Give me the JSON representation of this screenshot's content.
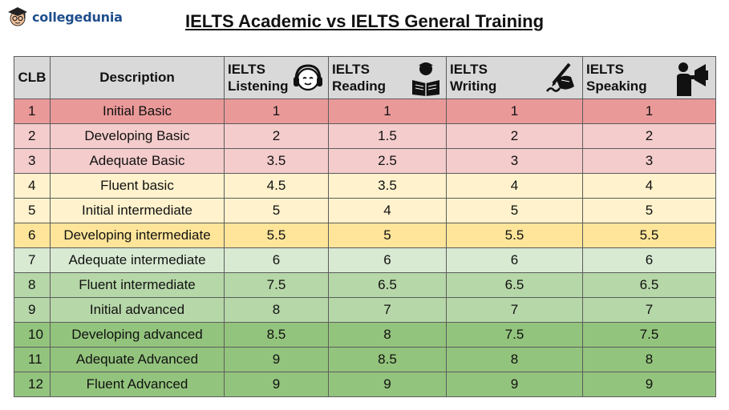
{
  "logo": {
    "text": "collegedunia"
  },
  "title": "IELTS Academic vs IELTS General Training",
  "columns": {
    "clb": "CLB",
    "description": "Description",
    "listening": [
      "IELTS",
      "Listening"
    ],
    "reading": [
      "IELTS",
      "Reading"
    ],
    "writing": [
      "IELTS",
      "Writing"
    ],
    "speaking": [
      "IELTS",
      "Speaking"
    ]
  },
  "icons": {
    "listening": "headphones-icon",
    "reading": "reader-icon",
    "writing": "writing-hand-icon",
    "speaking": "megaphone-speaker-icon"
  },
  "rows": [
    {
      "clb": "1",
      "description": "Initial Basic",
      "listening": "1",
      "reading": "1",
      "writing": "1",
      "speaking": "1",
      "color": "#ea9999"
    },
    {
      "clb": "2",
      "description": "Developing Basic",
      "listening": "2",
      "reading": "1.5",
      "writing": "2",
      "speaking": "2",
      "color": "#f4cccc"
    },
    {
      "clb": "3",
      "description": "Adequate Basic",
      "listening": "3.5",
      "reading": "2.5",
      "writing": "3",
      "speaking": "3",
      "color": "#f4cccc"
    },
    {
      "clb": "4",
      "description": "Fluent basic",
      "listening": "4.5",
      "reading": "3.5",
      "writing": "4",
      "speaking": "4",
      "color": "#fff2cc"
    },
    {
      "clb": "5",
      "description": "Initial intermediate",
      "listening": "5",
      "reading": "4",
      "writing": "5",
      "speaking": "5",
      "color": "#fff2cc"
    },
    {
      "clb": "6",
      "description": "Developing intermediate",
      "listening": "5.5",
      "reading": "5",
      "writing": "5.5",
      "speaking": "5.5",
      "color": "#ffe599"
    },
    {
      "clb": "7",
      "description": "Adequate intermediate",
      "listening": "6",
      "reading": "6",
      "writing": "6",
      "speaking": "6",
      "color": "#d9ead3"
    },
    {
      "clb": "8",
      "description": "Fluent intermediate",
      "listening": "7.5",
      "reading": "6.5",
      "writing": "6.5",
      "speaking": "6.5",
      "color": "#b6d7a8"
    },
    {
      "clb": "9",
      "description": "Initial advanced",
      "listening": "8",
      "reading": "7",
      "writing": "7",
      "speaking": "7",
      "color": "#b6d7a8"
    },
    {
      "clb": "10",
      "description": "Developing advanced",
      "listening": "8.5",
      "reading": "8",
      "writing": "7.5",
      "speaking": "7.5",
      "color": "#93c47d"
    },
    {
      "clb": "11",
      "description": "Adequate Advanced",
      "listening": "9",
      "reading": "8.5",
      "writing": "8",
      "speaking": "8",
      "color": "#93c47d"
    },
    {
      "clb": "12",
      "description": "Fluent Advanced",
      "listening": "9",
      "reading": "9",
      "writing": "9",
      "speaking": "9",
      "color": "#93c47d"
    }
  ]
}
